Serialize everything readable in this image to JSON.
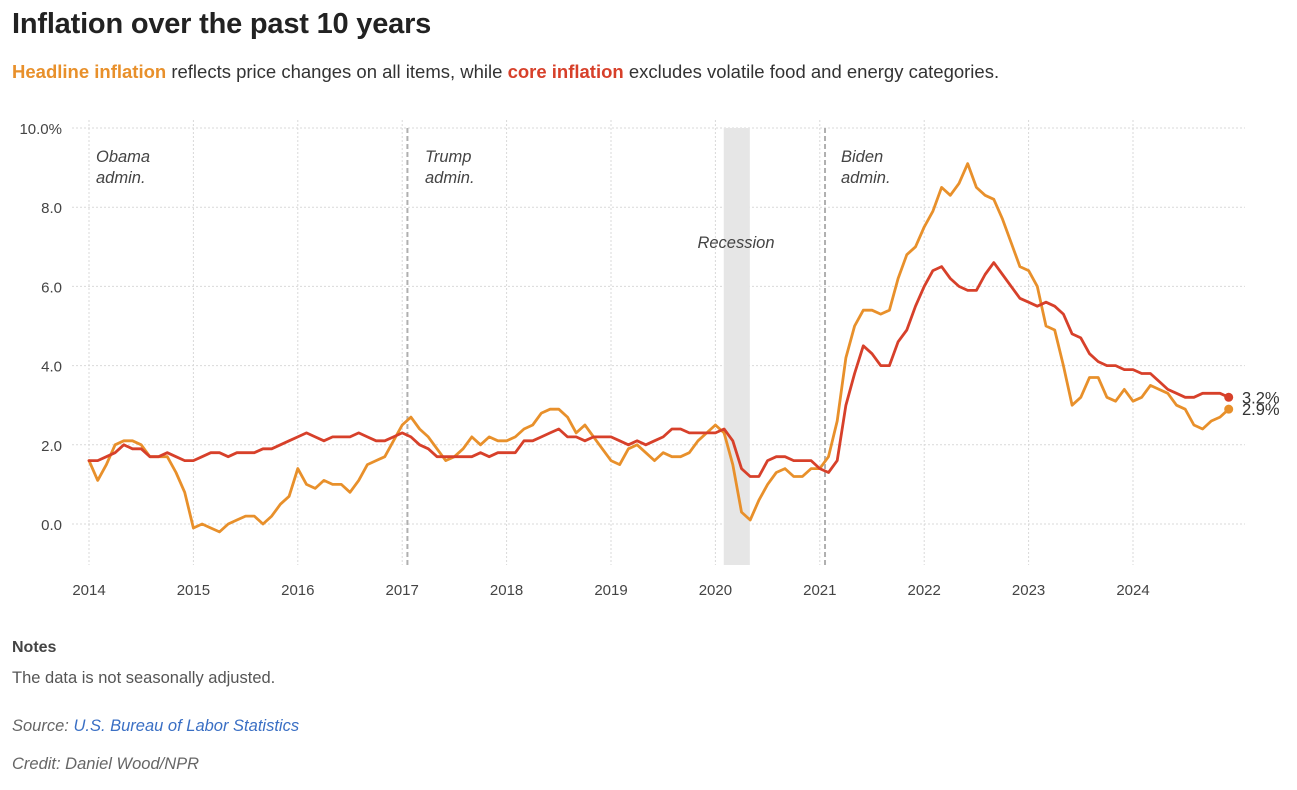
{
  "title": "Inflation over the past 10 years",
  "subtitle": {
    "headline_label": "Headline inflation",
    "middle_text": " reflects price changes on all items, while ",
    "core_label": "core inflation",
    "end_text": " excludes volatile food and energy categories."
  },
  "notes": {
    "heading": "Notes",
    "text": "The data is not seasonally adjusted."
  },
  "source": {
    "prefix": "Source: ",
    "link_text": "U.S. Bureau of Labor Statistics"
  },
  "credit": "Credit: Daniel Wood/NPR",
  "colors": {
    "headline": "#e8902b",
    "core": "#d7402a",
    "grid": "#d9d9d9",
    "recession": "#e6e6e6"
  },
  "chart_data": {
    "type": "line",
    "xlabel": "",
    "ylabel": "",
    "xlim": [
      2014,
      2024.92
    ],
    "ylim": [
      -1,
      10
    ],
    "grid": true,
    "x_ticks": [
      {
        "value": 2014,
        "label": "2014"
      },
      {
        "value": 2015,
        "label": "2015"
      },
      {
        "value": 2016,
        "label": "2016"
      },
      {
        "value": 2017,
        "label": "2017"
      },
      {
        "value": 2018,
        "label": "2018"
      },
      {
        "value": 2019,
        "label": "2019"
      },
      {
        "value": 2020,
        "label": "2020"
      },
      {
        "value": 2021,
        "label": "2021"
      },
      {
        "value": 2022,
        "label": "2022"
      },
      {
        "value": 2023,
        "label": "2023"
      },
      {
        "value": 2024,
        "label": "2024"
      }
    ],
    "y_ticks": [
      {
        "value": 10,
        "label": "10.0%"
      },
      {
        "value": 8,
        "label": "8.0"
      },
      {
        "value": 6,
        "label": "6.0"
      },
      {
        "value": 4,
        "label": "4.0"
      },
      {
        "value": 2,
        "label": "2.0"
      },
      {
        "value": 0,
        "label": "0.0"
      }
    ],
    "x_start": {
      "year": 2014,
      "month": 1
    },
    "series": [
      {
        "name": "Headline inflation",
        "end_label": "2.9%",
        "values": [
          1.6,
          1.1,
          1.5,
          2.0,
          2.1,
          2.1,
          2.0,
          1.7,
          1.7,
          1.7,
          1.3,
          0.8,
          -0.1,
          0.0,
          -0.1,
          -0.2,
          0.0,
          0.1,
          0.2,
          0.2,
          0.0,
          0.2,
          0.5,
          0.7,
          1.4,
          1.0,
          0.9,
          1.1,
          1.0,
          1.0,
          0.8,
          1.1,
          1.5,
          1.6,
          1.7,
          2.1,
          2.5,
          2.7,
          2.4,
          2.2,
          1.9,
          1.6,
          1.7,
          1.9,
          2.2,
          2.0,
          2.2,
          2.1,
          2.1,
          2.2,
          2.4,
          2.5,
          2.8,
          2.9,
          2.9,
          2.7,
          2.3,
          2.5,
          2.2,
          1.9,
          1.6,
          1.5,
          1.9,
          2.0,
          1.8,
          1.6,
          1.8,
          1.7,
          1.7,
          1.8,
          2.1,
          2.3,
          2.5,
          2.3,
          1.5,
          0.3,
          0.1,
          0.6,
          1.0,
          1.3,
          1.4,
          1.2,
          1.2,
          1.4,
          1.4,
          1.7,
          2.6,
          4.2,
          5.0,
          5.4,
          5.4,
          5.3,
          5.4,
          6.2,
          6.8,
          7.0,
          7.5,
          7.9,
          8.5,
          8.3,
          8.6,
          9.1,
          8.5,
          8.3,
          8.2,
          7.7,
          7.1,
          6.5,
          6.4,
          6.0,
          5.0,
          4.9,
          4.0,
          3.0,
          3.2,
          3.7,
          3.7,
          3.2,
          3.1,
          3.4,
          3.1,
          3.2,
          3.5,
          3.4,
          3.3,
          3.0,
          2.9,
          2.5,
          2.4,
          2.6,
          2.7,
          2.9
        ]
      },
      {
        "name": "Core inflation",
        "end_label": "3.2%",
        "values": [
          1.6,
          1.6,
          1.7,
          1.8,
          2.0,
          1.9,
          1.9,
          1.7,
          1.7,
          1.8,
          1.7,
          1.6,
          1.6,
          1.7,
          1.8,
          1.8,
          1.7,
          1.8,
          1.8,
          1.8,
          1.9,
          1.9,
          2.0,
          2.1,
          2.2,
          2.3,
          2.2,
          2.1,
          2.2,
          2.2,
          2.2,
          2.3,
          2.2,
          2.1,
          2.1,
          2.2,
          2.3,
          2.2,
          2.0,
          1.9,
          1.7,
          1.7,
          1.7,
          1.7,
          1.7,
          1.8,
          1.7,
          1.8,
          1.8,
          1.8,
          2.1,
          2.1,
          2.2,
          2.3,
          2.4,
          2.2,
          2.2,
          2.1,
          2.2,
          2.2,
          2.2,
          2.1,
          2.0,
          2.1,
          2.0,
          2.1,
          2.2,
          2.4,
          2.4,
          2.3,
          2.3,
          2.3,
          2.3,
          2.4,
          2.1,
          1.4,
          1.2,
          1.2,
          1.6,
          1.7,
          1.7,
          1.6,
          1.6,
          1.6,
          1.4,
          1.3,
          1.6,
          3.0,
          3.8,
          4.5,
          4.3,
          4.0,
          4.0,
          4.6,
          4.9,
          5.5,
          6.0,
          6.4,
          6.5,
          6.2,
          6.0,
          5.9,
          5.9,
          6.3,
          6.6,
          6.3,
          6.0,
          5.7,
          5.6,
          5.5,
          5.6,
          5.5,
          5.3,
          4.8,
          4.7,
          4.3,
          4.1,
          4.0,
          4.0,
          3.9,
          3.9,
          3.8,
          3.8,
          3.6,
          3.4,
          3.3,
          3.2,
          3.2,
          3.3,
          3.3,
          3.3,
          3.2
        ]
      }
    ],
    "annotations": [
      {
        "text": [
          "Obama",
          "admin."
        ]
      },
      {
        "text": [
          "Trump",
          "admin."
        ],
        "x": 2017.05
      },
      {
        "text": [
          "Recession"
        ],
        "x_range": [
          2020.08,
          2020.33
        ]
      },
      {
        "text": [
          "Biden",
          "admin."
        ],
        "x": 2021.05
      }
    ]
  }
}
